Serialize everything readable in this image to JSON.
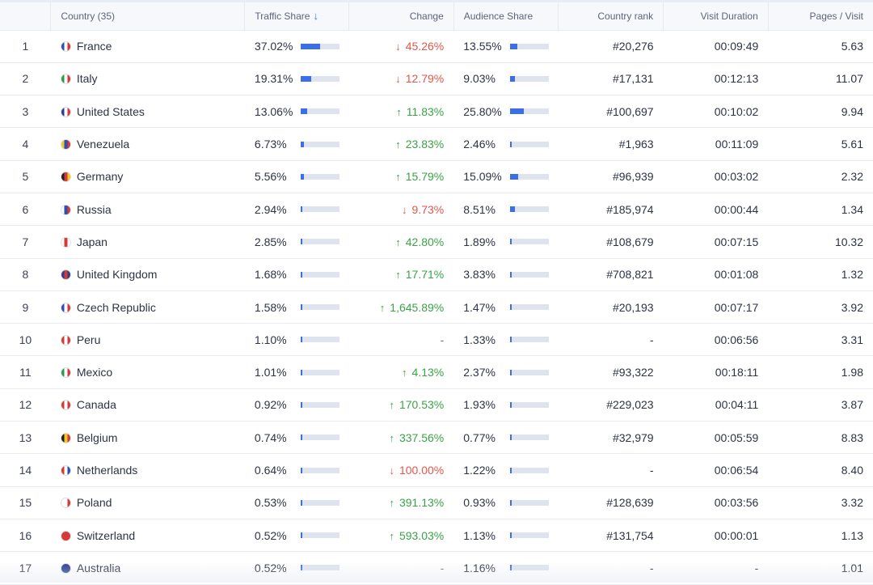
{
  "headers": {
    "country": "Country (35)",
    "traffic_share": "Traffic Share",
    "change": "Change",
    "audience_share": "Audience Share",
    "country_rank": "Country rank",
    "visit_duration": "Visit Duration",
    "pages_visit": "Pages / Visit"
  },
  "sort_icon": "arrow-down-icon",
  "colors": {
    "accent": "#3a6fe6",
    "up": "#3aa346",
    "down": "#e3574a",
    "bar_track": "#dfe3ee"
  },
  "rows": [
    {
      "index": "1",
      "country": "France",
      "flag_colors": [
        "#2b4fb3",
        "#ffffff",
        "#e0302f"
      ],
      "traffic_share": "37.02%",
      "traffic_fraction": 0.3702,
      "change": "45.26%",
      "change_dir": "down",
      "audience_share": "13.55%",
      "audience_fraction": 0.1355,
      "rank": "#20,276",
      "duration": "00:09:49",
      "pages": "5.63"
    },
    {
      "index": "2",
      "country": "Italy",
      "flag_colors": [
        "#2f9a4b",
        "#ffffff",
        "#d73a35"
      ],
      "traffic_share": "19.31%",
      "traffic_fraction": 0.1931,
      "change": "12.79%",
      "change_dir": "down",
      "audience_share": "9.03%",
      "audience_fraction": 0.0903,
      "rank": "#17,131",
      "duration": "00:12:13",
      "pages": "11.07"
    },
    {
      "index": "3",
      "country": "United States",
      "flag_colors": [
        "#2c3e8f",
        "#ffffff",
        "#d33c3c"
      ],
      "traffic_share": "13.06%",
      "traffic_fraction": 0.1306,
      "change": "11.83%",
      "change_dir": "up",
      "audience_share": "25.80%",
      "audience_fraction": 0.258,
      "rank": "#100,697",
      "duration": "00:10:02",
      "pages": "9.94"
    },
    {
      "index": "4",
      "country": "Venezuela",
      "flag_colors": [
        "#f3c821",
        "#2b4fb3",
        "#d73a35"
      ],
      "traffic_share": "6.73%",
      "traffic_fraction": 0.0673,
      "change": "23.83%",
      "change_dir": "up",
      "audience_share": "2.46%",
      "audience_fraction": 0.0246,
      "rank": "#1,963",
      "duration": "00:11:09",
      "pages": "5.61"
    },
    {
      "index": "5",
      "country": "Germany",
      "flag_colors": [
        "#222222",
        "#d73a35",
        "#f3c821"
      ],
      "traffic_share": "5.56%",
      "traffic_fraction": 0.0556,
      "change": "15.79%",
      "change_dir": "up",
      "audience_share": "15.09%",
      "audience_fraction": 0.1509,
      "rank": "#96,939",
      "duration": "00:03:02",
      "pages": "2.32"
    },
    {
      "index": "6",
      "country": "Russia",
      "flag_colors": [
        "#ffffff",
        "#2b4fb3",
        "#d73a35"
      ],
      "traffic_share": "2.94%",
      "traffic_fraction": 0.0294,
      "change": "9.73%",
      "change_dir": "down",
      "audience_share": "8.51%",
      "audience_fraction": 0.0851,
      "rank": "#185,974",
      "duration": "00:00:44",
      "pages": "1.34"
    },
    {
      "index": "7",
      "country": "Japan",
      "flag_colors": [
        "#ffffff",
        "#d73a35",
        "#ffffff"
      ],
      "traffic_share": "2.85%",
      "traffic_fraction": 0.0285,
      "change": "42.80%",
      "change_dir": "up",
      "audience_share": "1.89%",
      "audience_fraction": 0.0189,
      "rank": "#108,679",
      "duration": "00:07:15",
      "pages": "10.32"
    },
    {
      "index": "8",
      "country": "United Kingdom",
      "flag_colors": [
        "#2c3e8f",
        "#d73a35",
        "#2c3e8f"
      ],
      "traffic_share": "1.68%",
      "traffic_fraction": 0.0168,
      "change": "17.71%",
      "change_dir": "up",
      "audience_share": "3.83%",
      "audience_fraction": 0.0383,
      "rank": "#708,821",
      "duration": "00:01:08",
      "pages": "1.32"
    },
    {
      "index": "9",
      "country": "Czech Republic",
      "flag_colors": [
        "#2b4fb3",
        "#ffffff",
        "#d73a35"
      ],
      "traffic_share": "1.58%",
      "traffic_fraction": 0.0158,
      "change": "1,645.89%",
      "change_dir": "up",
      "audience_share": "1.47%",
      "audience_fraction": 0.0147,
      "rank": "#20,193",
      "duration": "00:07:17",
      "pages": "3.92"
    },
    {
      "index": "10",
      "country": "Peru",
      "flag_colors": [
        "#d73a35",
        "#ffffff",
        "#d73a35"
      ],
      "traffic_share": "1.10%",
      "traffic_fraction": 0.011,
      "change": "-",
      "change_dir": "none",
      "audience_share": "1.33%",
      "audience_fraction": 0.0133,
      "rank": "-",
      "duration": "00:06:56",
      "pages": "3.31"
    },
    {
      "index": "11",
      "country": "Mexico",
      "flag_colors": [
        "#2f9a4b",
        "#ffffff",
        "#d73a35"
      ],
      "traffic_share": "1.01%",
      "traffic_fraction": 0.0101,
      "change": "4.13%",
      "change_dir": "up",
      "audience_share": "2.37%",
      "audience_fraction": 0.0237,
      "rank": "#93,322",
      "duration": "00:18:11",
      "pages": "1.98"
    },
    {
      "index": "12",
      "country": "Canada",
      "flag_colors": [
        "#d73a35",
        "#ffffff",
        "#d73a35"
      ],
      "traffic_share": "0.92%",
      "traffic_fraction": 0.0092,
      "change": "170.53%",
      "change_dir": "up",
      "audience_share": "1.93%",
      "audience_fraction": 0.0193,
      "rank": "#229,023",
      "duration": "00:04:11",
      "pages": "3.87"
    },
    {
      "index": "13",
      "country": "Belgium",
      "flag_colors": [
        "#222222",
        "#f3c821",
        "#d73a35"
      ],
      "traffic_share": "0.74%",
      "traffic_fraction": 0.0074,
      "change": "337.56%",
      "change_dir": "up",
      "audience_share": "0.77%",
      "audience_fraction": 0.0077,
      "rank": "#32,979",
      "duration": "00:05:59",
      "pages": "8.83"
    },
    {
      "index": "14",
      "country": "Netherlands",
      "flag_colors": [
        "#d73a35",
        "#ffffff",
        "#2b4fb3"
      ],
      "traffic_share": "0.64%",
      "traffic_fraction": 0.0064,
      "change": "100.00%",
      "change_dir": "down",
      "audience_share": "1.22%",
      "audience_fraction": 0.0122,
      "rank": "-",
      "duration": "00:06:54",
      "pages": "8.40"
    },
    {
      "index": "15",
      "country": "Poland",
      "flag_colors": [
        "#ffffff",
        "#ffffff",
        "#d73a35"
      ],
      "traffic_share": "0.53%",
      "traffic_fraction": 0.0053,
      "change": "391.13%",
      "change_dir": "up",
      "audience_share": "0.93%",
      "audience_fraction": 0.0093,
      "rank": "#128,639",
      "duration": "00:03:56",
      "pages": "3.32"
    },
    {
      "index": "16",
      "country": "Switzerland",
      "flag_colors": [
        "#d73a35",
        "#d73a35",
        "#d73a35"
      ],
      "traffic_share": "0.52%",
      "traffic_fraction": 0.0052,
      "change": "593.03%",
      "change_dir": "up",
      "audience_share": "1.13%",
      "audience_fraction": 0.0113,
      "rank": "#131,754",
      "duration": "00:00:01",
      "pages": "1.13"
    },
    {
      "index": "17",
      "country": "Australia",
      "flag_colors": [
        "#2c3e8f",
        "#2c3e8f",
        "#2c3e8f"
      ],
      "traffic_share": "0.52%",
      "traffic_fraction": 0.0052,
      "change": "-",
      "change_dir": "none",
      "audience_share": "1.16%",
      "audience_fraction": 0.0116,
      "rank": "-",
      "duration": "-",
      "pages": "1.01"
    }
  ]
}
